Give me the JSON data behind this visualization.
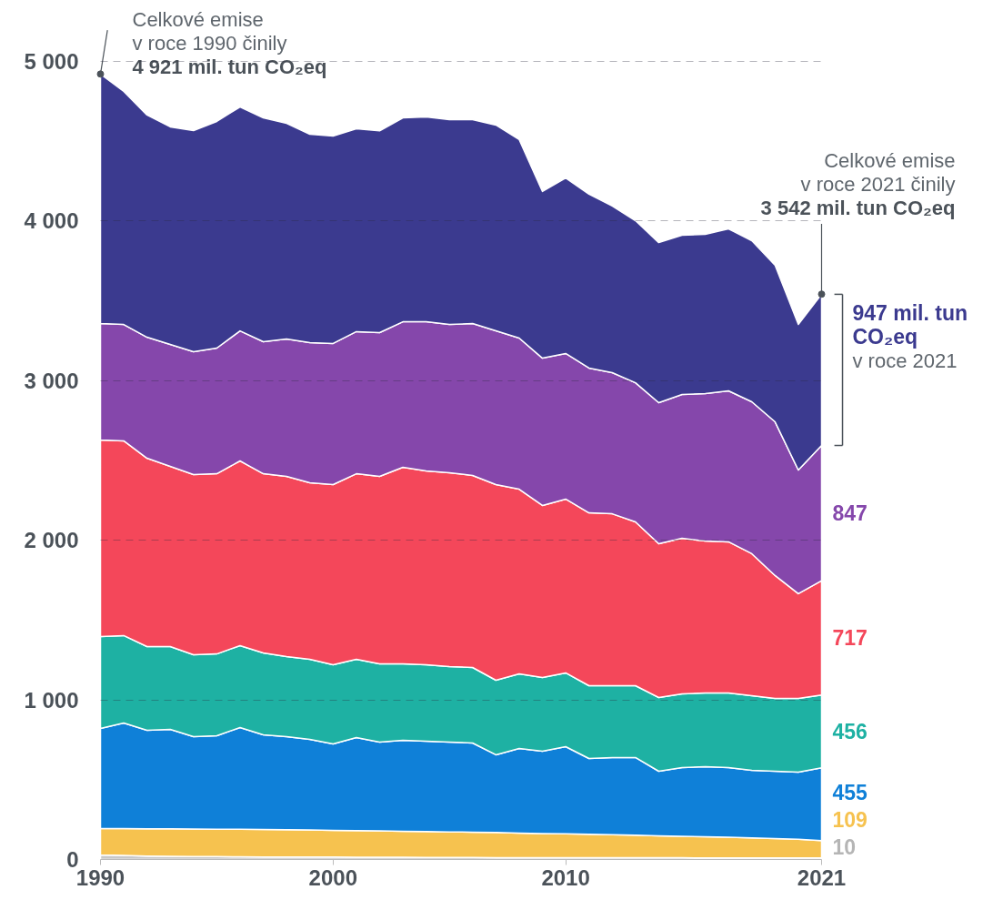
{
  "chart_data": {
    "type": "area",
    "stacked": true,
    "x": [
      1990,
      1991,
      1992,
      1993,
      1994,
      1995,
      1996,
      1997,
      1998,
      1999,
      2000,
      2001,
      2002,
      2003,
      2004,
      2005,
      2006,
      2007,
      2008,
      2009,
      2010,
      2011,
      2012,
      2013,
      2014,
      2015,
      2016,
      2017,
      2018,
      2019,
      2020,
      2021
    ],
    "xlim": [
      1990,
      2021
    ],
    "xticks": [
      1990,
      2000,
      2010,
      2021
    ],
    "ylim": [
      0,
      5000
    ],
    "yticks": [
      0,
      {
        "value": 1000,
        "label": "1 000"
      },
      {
        "value": 2000,
        "label": "2 000"
      },
      {
        "value": 3000,
        "label": "3 000"
      },
      {
        "value": 4000,
        "label": "4 000"
      },
      {
        "value": 5000,
        "label": "5 000"
      }
    ],
    "grid": "y",
    "series": [
      {
        "color": "#c8c8c8",
        "values": [
          28,
          25,
          22,
          20,
          19,
          18,
          17,
          16,
          16,
          15,
          15,
          14,
          14,
          14,
          13,
          13,
          13,
          12,
          12,
          12,
          12,
          11,
          11,
          11,
          11,
          11,
          10,
          10,
          10,
          10,
          10,
          10
        ],
        "value_labels": [
          null,
          null,
          null,
          null,
          null,
          null,
          null,
          null,
          null,
          null,
          null,
          null,
          null,
          null,
          null,
          null,
          null,
          null,
          null,
          null,
          null,
          null,
          null,
          null,
          null,
          null,
          null,
          null,
          null,
          null,
          null,
          "10"
        ]
      },
      {
        "color": "#f6c24f",
        "values": [
          166,
          169,
          171,
          172,
          172,
          172,
          172,
          172,
          171,
          170,
          168,
          167,
          165,
          163,
          162,
          160,
          158,
          157,
          154,
          151,
          149,
          147,
          144,
          141,
          137,
          134,
          132,
          129,
          125,
          121,
          117,
          109
        ],
        "value_labels": [
          null,
          null,
          null,
          null,
          null,
          null,
          null,
          null,
          null,
          null,
          null,
          null,
          null,
          null,
          null,
          null,
          null,
          null,
          null,
          null,
          null,
          null,
          null,
          null,
          null,
          null,
          null,
          null,
          null,
          null,
          null,
          "109"
        ]
      },
      {
        "color": "#0f80d8",
        "values": [
          627,
          661,
          617,
          623,
          579,
          585,
          638,
          593,
          583,
          568,
          541,
          583,
          556,
          570,
          566,
          562,
          559,
          487,
          530,
          515,
          546,
          475,
          484,
          487,
          405,
          431,
          440,
          437,
          424,
          422,
          420,
          455
        ],
        "value_labels": [
          null,
          null,
          null,
          null,
          null,
          null,
          null,
          null,
          null,
          null,
          null,
          null,
          null,
          null,
          null,
          null,
          null,
          null,
          null,
          null,
          null,
          null,
          null,
          null,
          null,
          null,
          null,
          null,
          null,
          null,
          null,
          "455"
        ]
      },
      {
        "color": "#1eb1a3",
        "values": [
          576,
          548,
          524,
          519,
          513,
          513,
          513,
          513,
          501,
          501,
          496,
          490,
          491,
          479,
          479,
          474,
          473,
          467,
          467,
          462,
          462,
          456,
          450,
          450,
          462,
          462,
          461,
          467,
          467,
          456,
          462,
          456
        ],
        "value_labels": [
          null,
          null,
          null,
          null,
          null,
          null,
          null,
          null,
          null,
          null,
          null,
          null,
          null,
          null,
          null,
          null,
          null,
          null,
          null,
          null,
          null,
          null,
          null,
          null,
          null,
          null,
          null,
          null,
          null,
          null,
          null,
          "456"
        ]
      },
      {
        "color": "#f4475a",
        "values": [
          1231,
          1220,
          1180,
          1129,
          1129,
          1129,
          1157,
          1123,
          1129,
          1106,
          1129,
          1163,
          1174,
          1231,
          1214,
          1214,
          1203,
          1226,
          1157,
          1078,
          1089,
          1083,
          1077,
          1026,
          963,
          975,
          952,
          947,
          890,
          770,
          656,
          717
        ],
        "value_labels": [
          null,
          null,
          null,
          null,
          null,
          null,
          null,
          null,
          null,
          null,
          null,
          null,
          null,
          null,
          null,
          null,
          null,
          null,
          null,
          null,
          null,
          null,
          null,
          null,
          null,
          null,
          null,
          null,
          null,
          null,
          null,
          "717"
        ]
      },
      {
        "color": "#8547ab",
        "values": [
          730,
          729,
          758,
          764,
          769,
          787,
          815,
          827,
          861,
          878,
          884,
          890,
          901,
          912,
          935,
          929,
          952,
          963,
          947,
          923,
          912,
          907,
          884,
          872,
          884,
          900,
          924,
          946,
          952,
          963,
          775,
          847
        ],
        "value_labels": [
          null,
          null,
          null,
          null,
          null,
          null,
          null,
          null,
          null,
          null,
          null,
          null,
          null,
          null,
          null,
          null,
          null,
          null,
          null,
          null,
          null,
          null,
          null,
          null,
          null,
          null,
          null,
          null,
          null,
          null,
          null,
          "847"
        ]
      },
      {
        "color": "#3b3a8f",
        "values": [
          1563,
          1460,
          1392,
          1363,
          1386,
          1420,
          1403,
          1402,
          1351,
          1306,
          1299,
          1271,
          1264,
          1277,
          1283,
          1283,
          1277,
          1289,
          1243,
          1044,
          1100,
          1089,
          1044,
          1015,
          1003,
          998,
          998,
          1015,
          1009,
          981,
          912,
          947
        ],
        "value_labels": [
          null,
          null,
          null,
          null,
          null,
          null,
          null,
          null,
          null,
          null,
          null,
          null,
          null,
          null,
          null,
          null,
          null,
          null,
          null,
          null,
          null,
          null,
          null,
          null,
          null,
          null,
          null,
          null,
          null,
          null,
          null,
          "947 mil. tun\nCO₂eq"
        ]
      }
    ],
    "annotations": [
      {
        "text": "Celkové emise\nv roce 1990 činily\n4 921 mil. tun CO₂eq",
        "x": 1990,
        "y": 4921
      },
      {
        "text": "Celkové emise\nv roce 2021 činily\n3 542 mil. tun CO₂eq",
        "x": 2021,
        "y": 3542
      },
      "v roce 2021"
    ]
  }
}
